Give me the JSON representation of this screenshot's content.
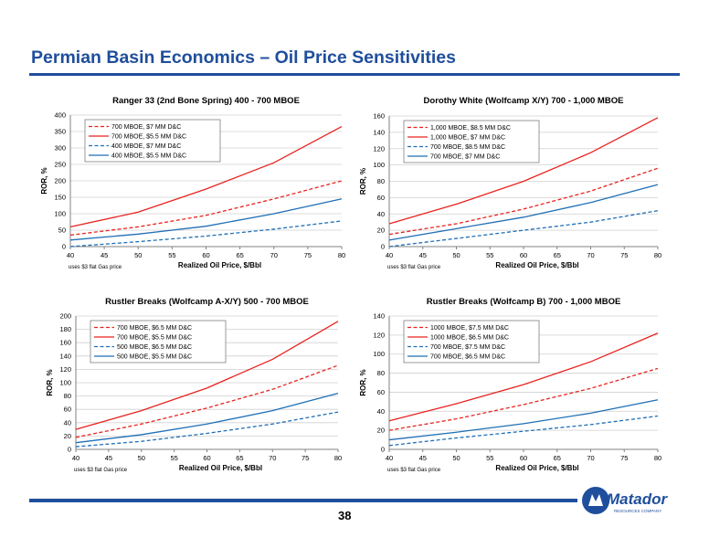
{
  "page": {
    "title": "Permian Basin Economics – Oil Price Sensitivities",
    "page_number": "38",
    "logo_text": "Matador",
    "logo_subtext": "RESOURCES COMPANY"
  },
  "colors": {
    "brand_blue": "#1f4e9c",
    "red": "#e8231f",
    "blue": "#1f6fb5"
  },
  "chart_data": [
    {
      "type": "line",
      "title": "Ranger 33 (2nd Bone Spring) 400 - 700 MBOE",
      "xlabel": "Realized Oil Price, $/Bbl",
      "ylabel": "ROR, %",
      "note": "uses $3 flat Gas price",
      "xlim": [
        40,
        80
      ],
      "ylim": [
        0,
        400
      ],
      "x_ticks": [
        40,
        45,
        50,
        55,
        60,
        65,
        70,
        75,
        80
      ],
      "y_ticks": [
        0,
        50,
        100,
        150,
        200,
        250,
        300,
        350,
        400
      ],
      "legend_position": "top-left",
      "grid": true,
      "series": [
        {
          "name": "700 MBOE, $7 MM D&C",
          "color": "red",
          "dashed": true,
          "x": [
            40,
            50,
            60,
            70,
            80
          ],
          "y": [
            35,
            60,
            95,
            145,
            200
          ]
        },
        {
          "name": "700 MBOE, $5.5 MM D&C",
          "color": "red",
          "dashed": false,
          "x": [
            40,
            50,
            60,
            70,
            80
          ],
          "y": [
            60,
            105,
            175,
            255,
            365
          ]
        },
        {
          "name": "400 MBOE, $7 MM D&C",
          "color": "blue",
          "dashed": true,
          "x": [
            40,
            50,
            60,
            70,
            80
          ],
          "y": [
            0,
            15,
            32,
            53,
            78
          ]
        },
        {
          "name": "400 MBOE, $5.5 MM D&C",
          "color": "blue",
          "dashed": false,
          "x": [
            40,
            50,
            60,
            70,
            80
          ],
          "y": [
            20,
            38,
            62,
            100,
            145
          ]
        }
      ]
    },
    {
      "type": "line",
      "title": "Dorothy White (Wolfcamp X/Y) 700 - 1,000 MBOE",
      "xlabel": "Realized Oil Price, $/Bbl",
      "ylabel": "ROR, %",
      "note": "uses $3 flat Gas price",
      "xlim": [
        40,
        80
      ],
      "ylim": [
        0,
        160
      ],
      "x_ticks": [
        40,
        45,
        50,
        55,
        60,
        65,
        70,
        75,
        80
      ],
      "y_ticks": [
        0,
        20,
        40,
        60,
        80,
        100,
        120,
        140,
        160
      ],
      "legend_position": "top-left",
      "grid": true,
      "series": [
        {
          "name": "1,000 MBOE, $8.5 MM D&C",
          "color": "red",
          "dashed": true,
          "x": [
            40,
            50,
            60,
            70,
            80
          ],
          "y": [
            15,
            28,
            46,
            68,
            96
          ]
        },
        {
          "name": "1,000 MBOE, $7 MM D&C",
          "color": "red",
          "dashed": false,
          "x": [
            40,
            50,
            60,
            70,
            80
          ],
          "y": [
            28,
            52,
            80,
            115,
            158
          ]
        },
        {
          "name": "700 MBOE, $8.5 MM D&C",
          "color": "blue",
          "dashed": true,
          "x": [
            40,
            50,
            60,
            70,
            80
          ],
          "y": [
            0,
            10,
            20,
            30,
            44
          ]
        },
        {
          "name": "700 MBOE, $7 MM D&C",
          "color": "blue",
          "dashed": false,
          "x": [
            40,
            50,
            60,
            70,
            80
          ],
          "y": [
            8,
            22,
            36,
            54,
            76
          ]
        }
      ]
    },
    {
      "type": "line",
      "title": "Rustler Breaks (Wolfcamp A-X/Y) 500 - 700 MBOE",
      "xlabel": "Realized Oil Price, $/Bbl",
      "ylabel": "ROR, %",
      "note": "uses $3 flat Gas price",
      "xlim": [
        40,
        80
      ],
      "ylim": [
        0,
        200
      ],
      "x_ticks": [
        40,
        45,
        50,
        55,
        60,
        65,
        70,
        75,
        80
      ],
      "y_ticks": [
        0,
        20,
        40,
        60,
        80,
        100,
        120,
        140,
        160,
        180,
        200
      ],
      "legend_position": "top-left",
      "grid": true,
      "series": [
        {
          "name": "700 MBOE, $6.5 MM D&C",
          "color": "red",
          "dashed": true,
          "x": [
            40,
            50,
            60,
            70,
            80
          ],
          "y": [
            18,
            38,
            62,
            90,
            126
          ]
        },
        {
          "name": "700 MBOE, $5.5 MM D&C",
          "color": "red",
          "dashed": false,
          "x": [
            40,
            50,
            60,
            70,
            80
          ],
          "y": [
            30,
            58,
            92,
            135,
            192
          ]
        },
        {
          "name": "500 MBOE, $6.5 MM D&C",
          "color": "blue",
          "dashed": true,
          "x": [
            40,
            50,
            60,
            70,
            80
          ],
          "y": [
            4,
            12,
            24,
            38,
            56
          ]
        },
        {
          "name": "500 MBOE, $5.5 MM D&C",
          "color": "blue",
          "dashed": false,
          "x": [
            40,
            50,
            60,
            70,
            80
          ],
          "y": [
            10,
            22,
            38,
            58,
            84
          ]
        }
      ]
    },
    {
      "type": "line",
      "title": "Rustler Breaks (Wolfcamp B) 700 - 1,000 MBOE",
      "xlabel": "Realized Oil Price, $/Bbl",
      "ylabel": "ROR, %",
      "note": "uses $3 flat Gas price",
      "xlim": [
        40,
        80
      ],
      "ylim": [
        0,
        140
      ],
      "x_ticks": [
        40,
        45,
        50,
        55,
        60,
        65,
        70,
        75,
        80
      ],
      "y_ticks": [
        0,
        20,
        40,
        60,
        80,
        100,
        120,
        140
      ],
      "legend_position": "top-left",
      "grid": true,
      "series": [
        {
          "name": "1000 MBOE, $7.5 MM D&C",
          "color": "red",
          "dashed": true,
          "x": [
            40,
            50,
            60,
            70,
            80
          ],
          "y": [
            20,
            32,
            47,
            64,
            85
          ]
        },
        {
          "name": "1000 MBOE, $6.5 MM D&C",
          "color": "red",
          "dashed": false,
          "x": [
            40,
            50,
            60,
            70,
            80
          ],
          "y": [
            30,
            48,
            68,
            92,
            122
          ]
        },
        {
          "name": "700 MBOE, $7.5 MM D&C",
          "color": "blue",
          "dashed": true,
          "x": [
            40,
            50,
            60,
            70,
            80
          ],
          "y": [
            4,
            12,
            19,
            26,
            35
          ]
        },
        {
          "name": "700 MBOE, $6.5 MM D&C",
          "color": "blue",
          "dashed": false,
          "x": [
            40,
            50,
            60,
            70,
            80
          ],
          "y": [
            10,
            18,
            27,
            38,
            52
          ]
        }
      ]
    }
  ]
}
